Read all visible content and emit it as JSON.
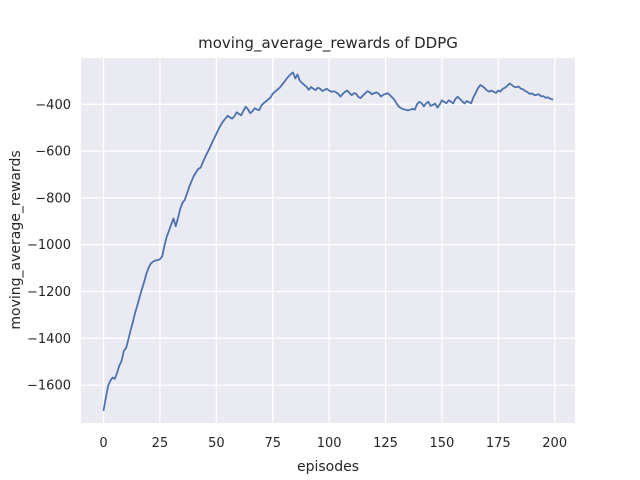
{
  "figure": {
    "background": "#ffffff"
  },
  "chart_data": {
    "type": "line",
    "title": "moving_average_rewards of DDPG",
    "xlabel": "episodes",
    "ylabel": "moving_average_rewards",
    "x_ticks": [
      0,
      25,
      50,
      75,
      100,
      125,
      150,
      175,
      200
    ],
    "y_ticks": [
      -400,
      -600,
      -800,
      -1000,
      -1200,
      -1400,
      -1600
    ],
    "xlim": [
      -10,
      209
    ],
    "ylim": [
      -1762,
      -202
    ],
    "grid": true,
    "legend_position": "none",
    "axes_background": "#eaeaf2",
    "grid_color": "#ffffff",
    "text_color": "#262626",
    "series": [
      {
        "name": "moving_average_rewards",
        "color": "#4c72b0",
        "x_start": 0,
        "x_step": 1,
        "values": [
          -1707,
          -1655,
          -1604,
          -1581,
          -1568,
          -1573,
          -1548,
          -1517,
          -1496,
          -1453,
          -1442,
          -1404,
          -1366,
          -1330,
          -1291,
          -1258,
          -1224,
          -1190,
          -1158,
          -1124,
          -1098,
          -1080,
          -1072,
          -1067,
          -1066,
          -1062,
          -1050,
          -1003,
          -966,
          -940,
          -913,
          -888,
          -921,
          -886,
          -846,
          -821,
          -808,
          -781,
          -752,
          -729,
          -706,
          -691,
          -676,
          -671,
          -648,
          -626,
          -607,
          -588,
          -566,
          -546,
          -527,
          -506,
          -488,
          -473,
          -461,
          -449,
          -456,
          -461,
          -451,
          -434,
          -441,
          -447,
          -428,
          -410,
          -421,
          -438,
          -430,
          -417,
          -422,
          -425,
          -404,
          -395,
          -387,
          -379,
          -371,
          -355,
          -346,
          -338,
          -330,
          -318,
          -306,
          -292,
          -281,
          -271,
          -264,
          -289,
          -272,
          -299,
          -309,
          -317,
          -325,
          -338,
          -326,
          -333,
          -339,
          -329,
          -333,
          -343,
          -338,
          -334,
          -341,
          -347,
          -344,
          -348,
          -355,
          -367,
          -356,
          -347,
          -341,
          -351,
          -361,
          -352,
          -355,
          -369,
          -373,
          -362,
          -353,
          -344,
          -348,
          -357,
          -352,
          -349,
          -355,
          -367,
          -359,
          -356,
          -352,
          -361,
          -371,
          -381,
          -398,
          -411,
          -417,
          -421,
          -423,
          -426,
          -423,
          -419,
          -423,
          -399,
          -389,
          -395,
          -409,
          -396,
          -389,
          -407,
          -402,
          -397,
          -414,
          -401,
          -383,
          -390,
          -395,
          -383,
          -389,
          -396,
          -377,
          -368,
          -377,
          -387,
          -396,
          -386,
          -391,
          -395,
          -369,
          -351,
          -331,
          -318,
          -323,
          -331,
          -341,
          -346,
          -341,
          -347,
          -351,
          -341,
          -345,
          -333,
          -329,
          -321,
          -311,
          -317,
          -325,
          -327,
          -324,
          -333,
          -336,
          -343,
          -348,
          -356,
          -353,
          -361,
          -359,
          -357,
          -366,
          -365,
          -372,
          -370,
          -376,
          -379
        ]
      }
    ]
  }
}
